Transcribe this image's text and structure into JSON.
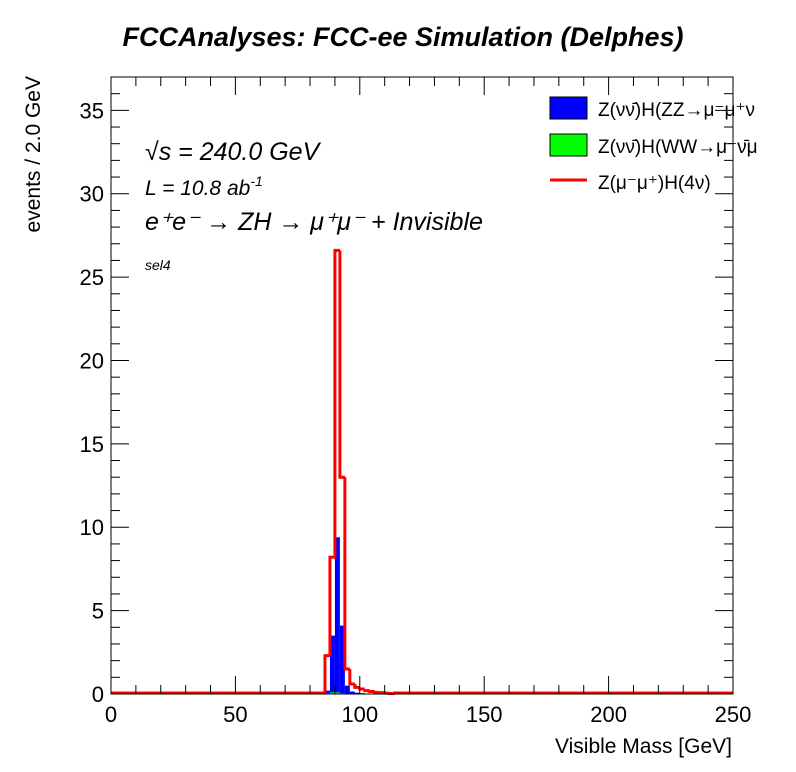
{
  "chart_data": {
    "type": "bar",
    "title": "FCCAnalyses: FCC-ee Simulation (Delphes)",
    "xlabel": "Visible Mass [GeV]",
    "ylabel": "events / 2.0 GeV",
    "xlim": [
      0,
      250
    ],
    "ylim": [
      0,
      37
    ],
    "bin_width": 2.0,
    "x_ticks": [
      0,
      50,
      100,
      150,
      200,
      250
    ],
    "y_ticks": [
      0,
      5,
      10,
      15,
      20,
      25,
      30,
      35
    ],
    "grid": false,
    "legend_position": "top-right",
    "annotations": {
      "sqrt_s": "√s = 240.0 GeV",
      "lumi": "L = 10.8 ab",
      "lumi_exp": "-1",
      "process": "e⁺e⁻ → ZH → μ⁺μ⁻ + Invisible",
      "selection": "sel4"
    },
    "series": [
      {
        "name": "Z(νν̄)H(ZZ→μ⁻μ⁺ν",
        "style": "filled",
        "color": "#0000ff",
        "bin_edges": [
          86,
          88,
          90,
          92,
          94,
          96,
          98,
          100,
          102
        ],
        "values": [
          0.2,
          3.5,
          9.4,
          4.1,
          0.5,
          0.15,
          0.08,
          0.05
        ]
      },
      {
        "name": "Z(νν̄)H(WW→μ⁻ν̄μ",
        "style": "filled",
        "color": "#00ff00",
        "bin_edges": [
          86,
          88,
          90,
          92,
          94
        ],
        "values": [
          0.05,
          0.1,
          0.1,
          0.05
        ]
      },
      {
        "name": "Z(μ⁻μ⁺)H(4ν)",
        "style": "line",
        "color": "#ff0000",
        "bin_edges": [
          86,
          88,
          90,
          92,
          94,
          96,
          98,
          100,
          102,
          104,
          106,
          108,
          110,
          112,
          114
        ],
        "values": [
          2.3,
          8.2,
          26.6,
          13.0,
          1.5,
          0.6,
          0.4,
          0.3,
          0.2,
          0.15,
          0.1,
          0.08,
          0.05,
          0.03
        ]
      }
    ]
  }
}
